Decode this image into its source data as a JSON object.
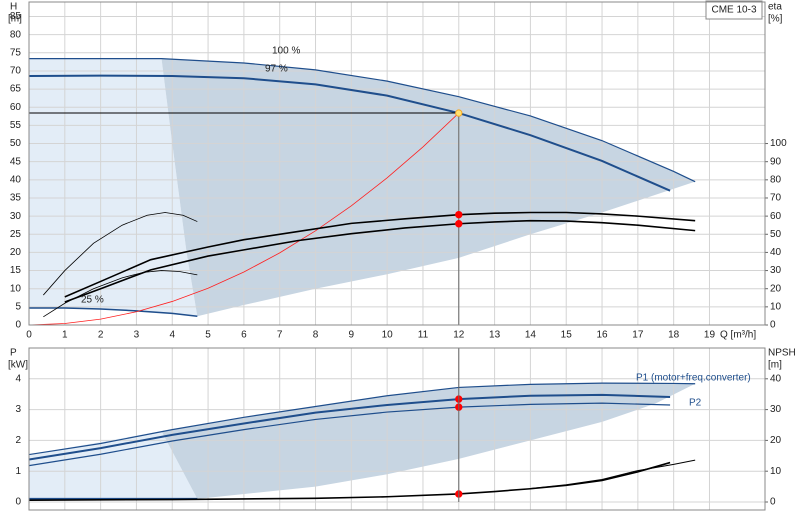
{
  "chart_data": [
    {
      "type": "line",
      "title": "CME 10-3",
      "ylabel": "H",
      "yunit": "[m]",
      "y2label": "eta",
      "y2unit": "[%]",
      "xlabel": "Q [m³/h]",
      "xlim": [
        0,
        20.55
      ],
      "ylim": [
        0,
        89
      ],
      "y2lim": [
        0,
        178
      ],
      "xticks": [
        0,
        1,
        2,
        3,
        4,
        5,
        6,
        7,
        8,
        9,
        10,
        11,
        12,
        13,
        14,
        15,
        16,
        17,
        18,
        19
      ],
      "yticks": [
        0,
        5,
        10,
        15,
        20,
        25,
        30,
        35,
        40,
        45,
        50,
        55,
        60,
        65,
        70,
        75,
        80,
        85
      ],
      "y2ticks": [
        0,
        10,
        20,
        30,
        40,
        50,
        60,
        70,
        80,
        90,
        100
      ],
      "grid": true,
      "show_xtick_labels": true,
      "annotations": [
        "100 %",
        "97 %",
        "25 %"
      ],
      "areas": [
        {
          "color": "#e3edf7",
          "x": [
            0,
            3.7,
            4.0,
            4.4,
            4.7,
            2,
            0
          ],
          "values": [
            73.4,
            73.4,
            50,
            20,
            2.4,
            4.4,
            4.7
          ]
        },
        {
          "color": "#c7d5e2",
          "x": [
            3.7,
            6,
            8,
            10,
            12,
            14,
            16,
            18,
            18.6,
            16,
            14,
            12,
            10,
            8,
            6,
            4.7,
            4.4,
            4.0
          ],
          "values": [
            73.4,
            72.2,
            70.3,
            67.2,
            62.9,
            57.6,
            50.8,
            42.3,
            39.5,
            31,
            25,
            18.5,
            14,
            10,
            5.5,
            2.4,
            20,
            50
          ]
        }
      ],
      "series": [
        {
          "color": "#1f4e8c",
          "width": 1.2,
          "x": [
            0,
            2,
            3.7,
            6,
            8,
            10,
            12,
            14,
            16,
            18,
            18.6
          ],
          "values": [
            73.4,
            73.4,
            73.4,
            72.2,
            70.3,
            67.2,
            62.9,
            57.6,
            50.8,
            42.3,
            39.5
          ]
        },
        {
          "color": "#1f4e8c",
          "width": 2,
          "x": [
            0,
            2,
            4,
            6,
            8,
            10,
            12,
            14,
            16,
            17.9
          ],
          "values": [
            68.6,
            68.7,
            68.6,
            68.0,
            66.3,
            63.2,
            58.4,
            52.3,
            45.2,
            37.0
          ]
        },
        {
          "color": "#1f4e8c",
          "width": 1.5,
          "x": [
            0,
            1,
            2,
            3,
            4,
            4.7
          ],
          "values": [
            4.7,
            4.7,
            4.4,
            3.9,
            3.2,
            2.4
          ]
        },
        {
          "color": "#ff2020",
          "width": 0.8,
          "x": [
            0,
            1,
            2,
            3,
            4,
            5,
            6,
            7,
            8,
            9,
            10,
            11,
            12
          ],
          "values": [
            0,
            0.41,
            1.62,
            3.65,
            6.49,
            10.14,
            14.6,
            19.87,
            25.96,
            32.85,
            40.56,
            49.07,
            58.4
          ]
        },
        {
          "color": "#000000",
          "width": 1.6,
          "axis": "y2",
          "x": [
            1,
            2,
            3.4,
            5,
            6,
            7.5,
            9,
            10.5,
            12,
            13,
            14,
            15,
            16,
            17,
            18.6
          ],
          "values": [
            15.5,
            24,
            36,
            43,
            47,
            51.5,
            56,
            58.5,
            60.8,
            61.6,
            62,
            62,
            61.2,
            60,
            57.5
          ]
        },
        {
          "color": "#000000",
          "width": 1.6,
          "axis": "y2",
          "x": [
            1,
            2,
            3.4,
            5,
            6,
            7.5,
            9,
            10.5,
            12,
            13,
            14,
            15,
            16,
            17,
            18.6
          ],
          "values": [
            12.7,
            20,
            30.4,
            38,
            41.4,
            46.5,
            50.3,
            53.5,
            55.8,
            56.8,
            57.5,
            57.3,
            56.4,
            55,
            52
          ]
        },
        {
          "color": "#000000",
          "width": 0.8,
          "axis": "y2",
          "x": [
            0.4,
            1,
            1.8,
            2.6,
            3.3,
            3.8,
            4.3,
            4.7
          ],
          "values": [
            16.5,
            30,
            45,
            55,
            60.5,
            62,
            60.5,
            57
          ]
        },
        {
          "color": "#000000",
          "width": 0.8,
          "axis": "y2",
          "x": [
            0.4,
            1,
            1.8,
            2.6,
            3.2,
            3.7,
            4.2,
            4.7
          ],
          "values": [
            4.5,
            12,
            20,
            26,
            29,
            30,
            29.5,
            27.6
          ]
        }
      ],
      "markers": [
        {
          "x": 12,
          "y": 58.4,
          "color": "#f5a623",
          "fill": "#ffe070",
          "guides": true
        },
        {
          "x": 12,
          "y": 60.8,
          "axis": "y2",
          "color": "#ff0000",
          "fill": "#ff0000"
        },
        {
          "x": 12,
          "y": 55.8,
          "axis": "y2",
          "color": "#ff0000",
          "fill": "#ff0000"
        }
      ]
    },
    {
      "type": "line",
      "ylabel": "P",
      "yunit": "[kW]",
      "y2label": "NPSH",
      "y2unit": "[m]",
      "xlim": [
        0,
        20.55
      ],
      "ylim": [
        -0.26,
        5
      ],
      "y2lim": [
        -2.6,
        50
      ],
      "xticks": [
        0,
        1,
        2,
        3,
        4,
        5,
        6,
        7,
        8,
        9,
        10,
        11,
        12,
        13,
        14,
        15,
        16,
        17,
        18,
        19
      ],
      "yticks": [
        0,
        1,
        2,
        3,
        4
      ],
      "y2ticks": [
        0,
        10,
        20,
        30,
        40
      ],
      "grid": true,
      "show_xtick_labels": false,
      "annotations": [
        "P1 (motor+freq.converter)",
        "P2"
      ],
      "areas": [
        {
          "color": "#e3edf7",
          "x": [
            0,
            3.7,
            4.7,
            0
          ],
          "values": [
            1.54,
            2.3,
            0.1,
            0.1
          ]
        },
        {
          "color": "#c7d5e2",
          "x": [
            3.7,
            6,
            8,
            10,
            12,
            14,
            16,
            18,
            18.6,
            17.5,
            16,
            14,
            12,
            10,
            8,
            4.7
          ],
          "values": [
            2.3,
            2.75,
            3.1,
            3.45,
            3.72,
            3.82,
            3.86,
            3.85,
            3.84,
            3.2,
            2.6,
            2.0,
            1.4,
            0.9,
            0.5,
            0.1
          ]
        }
      ],
      "series": [
        {
          "color": "#1f4e8c",
          "width": 1.2,
          "x": [
            0,
            2,
            4,
            6,
            8,
            10,
            12,
            14,
            16,
            18,
            18.6
          ],
          "values": [
            1.54,
            1.9,
            2.35,
            2.75,
            3.1,
            3.45,
            3.72,
            3.82,
            3.86,
            3.85,
            3.84
          ]
        },
        {
          "color": "#1f4e8c",
          "width": 2,
          "x": [
            0,
            2,
            4,
            6,
            8,
            10,
            12,
            14,
            16,
            17.9
          ],
          "values": [
            1.38,
            1.75,
            2.18,
            2.55,
            2.9,
            3.15,
            3.34,
            3.45,
            3.48,
            3.41
          ]
        },
        {
          "color": "#1f4e8c",
          "width": 1.2,
          "x": [
            0,
            2,
            4,
            6,
            8,
            10,
            12,
            14,
            16,
            17.9
          ],
          "values": [
            1.18,
            1.55,
            1.98,
            2.35,
            2.68,
            2.92,
            3.08,
            3.17,
            3.21,
            3.15
          ]
        },
        {
          "color": "#1f4e8c",
          "width": 2,
          "x": [
            0,
            4.7
          ],
          "values": [
            0.1,
            0.1
          ]
        },
        {
          "color": "#000000",
          "width": 1.6,
          "axis": "y2",
          "x": [
            0,
            2,
            4,
            6,
            8,
            10,
            12,
            13,
            14,
            15,
            16,
            17,
            17.9
          ],
          "values": [
            0.6,
            0.7,
            0.8,
            1.0,
            1.2,
            1.7,
            2.6,
            3.4,
            4.3,
            5.4,
            7,
            9.8,
            12.8
          ]
        },
        {
          "color": "#000000",
          "width": 1,
          "axis": "y2",
          "x": [
            14,
            15,
            16,
            17,
            18,
            18.6
          ],
          "values": [
            4.4,
            5.6,
            7.3,
            10.2,
            12.2,
            13.6
          ]
        }
      ],
      "markers": [
        {
          "x": 12,
          "y": 3.34,
          "color": "#ff0000",
          "fill": "#ff0000"
        },
        {
          "x": 12,
          "y": 3.08,
          "color": "#ff0000",
          "fill": "#ff0000"
        },
        {
          "x": 12,
          "y": 2.6,
          "axis": "y2",
          "color": "#ff0000",
          "fill": "#ff0000"
        }
      ]
    }
  ]
}
